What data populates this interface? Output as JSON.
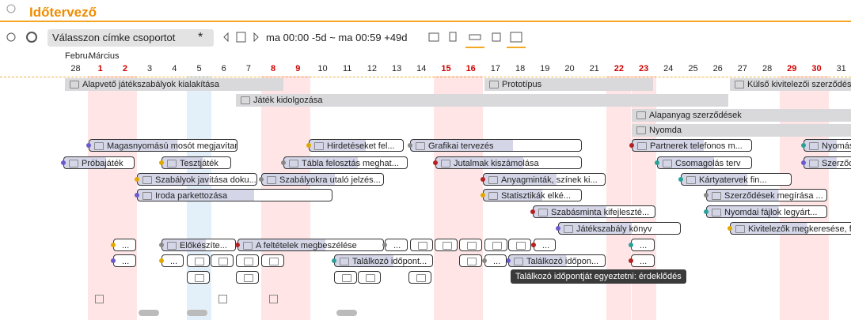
{
  "header": {
    "title": "Időtervező"
  },
  "toolbar": {
    "tag_group": "Válasszon címke csoportot",
    "star": "*",
    "range": "ma 00:00 -5d ~ ma 00:59 +49d"
  },
  "calendar": {
    "months": [
      "Február",
      "Március"
    ],
    "days": [
      "28",
      "1",
      "2",
      "3",
      "4",
      "5",
      "6",
      "7",
      "8",
      "9",
      "10",
      "11",
      "12",
      "13",
      "14",
      "15",
      "16",
      "17",
      "18",
      "19",
      "20",
      "21",
      "22",
      "23",
      "24",
      "25",
      "26",
      "27",
      "28",
      "29",
      "30",
      "31"
    ]
  },
  "tasks": [
    "Alapvető játékszabályok kialakítása",
    "Prototípus",
    "Külső kivitelezői szerződés",
    "Játék kidolgozása",
    "Alapanyag szerződések",
    "Nyomda",
    "Magasnyomású mosót megjavítani",
    "Hirdetéseket fel...",
    "Grafikai tervezés",
    "Partnerek telefonos m...",
    "Nyomás",
    "Próbajáték",
    "Tesztjáték",
    "Tábla felosztás meghat...",
    "Jutalmak kiszámolása",
    "Csomagolás terv",
    "Szerződ",
    "Szabályok javítása doku...",
    "Szabályokra utaló jelzés...",
    "Anyagminták, színek ki...",
    "Kártyatervek fin...",
    "Iroda parkettozása",
    "Statisztikák elké...",
    "Szerződések megírása ...",
    "Szabásminta kifejleszté...",
    "Nyomdai fájlok legyárt...",
    "Játékszabály könyv",
    "Kivitelezők megkeresése, fel...",
    "Előkészíte...",
    "A feltételek megbeszélése",
    "Találkozó időpont...",
    "Találkozó időpon...",
    "...",
    "...",
    "...",
    "...",
    "...",
    "...",
    "...",
    "..."
  ],
  "tooltip": "Találkozó időpontját egyeztetni: érdeklődés"
}
